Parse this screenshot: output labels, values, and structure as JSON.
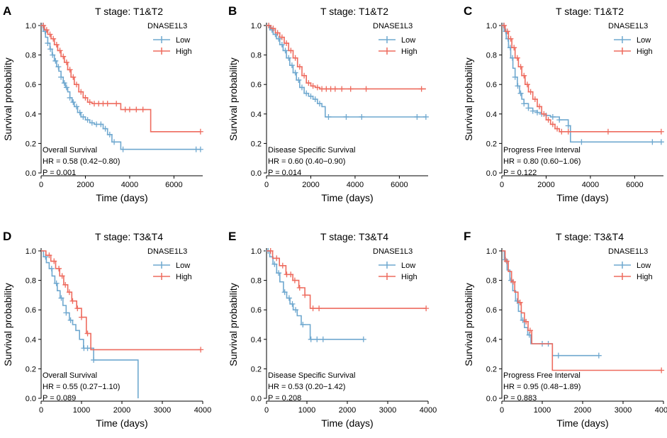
{
  "figure": {
    "colors": {
      "low": "#6fa8cf",
      "high": "#ee6b5e",
      "axis": "#000000"
    },
    "ylabel": "Survival probability",
    "legend_title": "DNASE1L3",
    "legend_labels": [
      "Low",
      "High"
    ]
  },
  "chart_data": [
    {
      "type": "line",
      "panel": "A",
      "title": "T stage: T1&T2",
      "xlabel": "Time (days)",
      "ylabel": "Survival probability",
      "xlim": [
        0,
        7300
      ],
      "ylim": [
        0,
        1
      ],
      "xticks": [
        0,
        2000,
        4000,
        6000
      ],
      "yticks": [
        0.0,
        0.2,
        0.4,
        0.6,
        0.8,
        1.0
      ],
      "ytick_labels": [
        "0.0",
        "0.2",
        "0.4",
        "0.6",
        "0.8",
        "1.0"
      ],
      "legend_title": "DNASE1L3",
      "stats": [
        "Overall Survival",
        "HR = 0.58 (0.42−0.80)",
        "P = 0.001"
      ],
      "series": [
        {
          "name": "Low",
          "x": [
            0,
            100,
            200,
            300,
            400,
            500,
            600,
            700,
            800,
            900,
            1000,
            1100,
            1200,
            1300,
            1400,
            1500,
            1650,
            1800,
            2000,
            2200,
            2400,
            2600,
            2800,
            3000,
            3200,
            3400,
            3600,
            7200
          ],
          "y": [
            1.0,
            0.96,
            0.92,
            0.88,
            0.84,
            0.8,
            0.76,
            0.72,
            0.69,
            0.65,
            0.61,
            0.58,
            0.55,
            0.51,
            0.48,
            0.45,
            0.41,
            0.38,
            0.36,
            0.34,
            0.33,
            0.33,
            0.3,
            0.26,
            0.21,
            0.21,
            0.16,
            0.16
          ],
          "censor_x": [
            80,
            180,
            300,
            420,
            520,
            650,
            780,
            900,
            1050,
            1150,
            1300,
            1450,
            1600,
            1750,
            1900,
            2100,
            2300,
            2500,
            2700,
            2900,
            3100,
            3300,
            3700,
            7000,
            7200
          ]
        },
        {
          "name": "High",
          "x": [
            0,
            150,
            300,
            450,
            600,
            750,
            900,
            1050,
            1200,
            1350,
            1500,
            1700,
            1900,
            2100,
            2300,
            2500,
            3000,
            3600,
            4900,
            4950,
            7200
          ],
          "y": [
            1.0,
            0.97,
            0.94,
            0.91,
            0.87,
            0.83,
            0.79,
            0.75,
            0.7,
            0.65,
            0.6,
            0.55,
            0.51,
            0.48,
            0.47,
            0.47,
            0.47,
            0.43,
            0.43,
            0.28,
            0.28
          ],
          "censor_x": [
            100,
            250,
            400,
            550,
            700,
            850,
            1000,
            1150,
            1300,
            1450,
            1600,
            1800,
            2000,
            2200,
            2400,
            2600,
            2800,
            3000,
            3400,
            3800,
            4000,
            4300,
            4600,
            7200
          ]
        }
      ]
    },
    {
      "type": "line",
      "panel": "B",
      "title": "T stage: T1&T2",
      "xlabel": "Time (days)",
      "ylabel": "Survival probability",
      "xlim": [
        0,
        7300
      ],
      "ylim": [
        0,
        1
      ],
      "xticks": [
        0,
        2000,
        4000,
        6000
      ],
      "yticks": [
        0.0,
        0.2,
        0.4,
        0.6,
        0.8,
        1.0
      ],
      "ytick_labels": [
        "0.0",
        "0.2",
        "0.4",
        "0.6",
        "0.8",
        "1.0"
      ],
      "legend_title": "DNASE1L3",
      "stats": [
        "Disease Specific Survival",
        "HR = 0.60 (0.40−0.90)",
        "P = 0.014"
      ],
      "series": [
        {
          "name": "Low",
          "x": [
            0,
            150,
            300,
            450,
            600,
            750,
            900,
            1050,
            1200,
            1350,
            1500,
            1700,
            1900,
            2100,
            2300,
            2500,
            2650,
            7200
          ],
          "y": [
            1.0,
            0.97,
            0.94,
            0.91,
            0.87,
            0.83,
            0.78,
            0.73,
            0.68,
            0.63,
            0.58,
            0.54,
            0.52,
            0.5,
            0.47,
            0.45,
            0.38,
            0.38
          ],
          "censor_x": [
            100,
            250,
            400,
            550,
            700,
            850,
            1000,
            1150,
            1300,
            1450,
            1600,
            1800,
            2000,
            2200,
            2400,
            2800,
            3600,
            4300,
            6800,
            7200
          ]
        },
        {
          "name": "High",
          "x": [
            0,
            200,
            400,
            600,
            800,
            1000,
            1200,
            1400,
            1600,
            1800,
            2000,
            2200,
            2400,
            7200
          ],
          "y": [
            1.0,
            0.98,
            0.95,
            0.92,
            0.88,
            0.83,
            0.78,
            0.72,
            0.66,
            0.61,
            0.59,
            0.58,
            0.57,
            0.57
          ],
          "censor_x": [
            100,
            300,
            500,
            700,
            900,
            1100,
            1300,
            1500,
            1700,
            1900,
            2100,
            2300,
            2500,
            2700,
            2900,
            3100,
            3400,
            3800,
            4500,
            7000
          ]
        }
      ]
    },
    {
      "type": "line",
      "panel": "C",
      "title": "T stage: T1&T2",
      "xlabel": "Time (days)",
      "ylabel": "Survival probability",
      "xlim": [
        0,
        7300
      ],
      "ylim": [
        0,
        1
      ],
      "xticks": [
        0,
        2000,
        4000,
        6000
      ],
      "yticks": [
        0.0,
        0.2,
        0.4,
        0.6,
        0.8,
        1.0
      ],
      "ytick_labels": [
        "0.0",
        "0.2",
        "0.4",
        "0.6",
        "0.8",
        "1.0"
      ],
      "legend_title": "DNASE1L3",
      "stats": [
        "Progress Free Interval",
        "HR = 0.80 (0.60−1.06)",
        "P = 0.122"
      ],
      "series": [
        {
          "name": "Low",
          "x": [
            0,
            100,
            200,
            300,
            400,
            500,
            600,
            700,
            800,
            900,
            1000,
            1200,
            1400,
            1600,
            1800,
            2000,
            2200,
            2600,
            3000,
            3100,
            7200
          ],
          "y": [
            1.0,
            0.96,
            0.91,
            0.85,
            0.78,
            0.71,
            0.65,
            0.59,
            0.54,
            0.5,
            0.47,
            0.44,
            0.42,
            0.41,
            0.4,
            0.39,
            0.38,
            0.36,
            0.32,
            0.21,
            0.21
          ],
          "censor_x": [
            80,
            180,
            280,
            380,
            480,
            600,
            720,
            850,
            1000,
            1200,
            1400,
            1600,
            1800,
            2000,
            2300,
            2600,
            3000,
            3600,
            6800,
            7200
          ]
        },
        {
          "name": "High",
          "x": [
            0,
            150,
            300,
            450,
            600,
            750,
            900,
            1050,
            1200,
            1400,
            1600,
            1800,
            2000,
            2200,
            2400,
            2600,
            7200
          ],
          "y": [
            1.0,
            0.96,
            0.91,
            0.85,
            0.78,
            0.72,
            0.66,
            0.6,
            0.55,
            0.5,
            0.45,
            0.4,
            0.36,
            0.33,
            0.3,
            0.28,
            0.28
          ],
          "censor_x": [
            100,
            250,
            400,
            550,
            700,
            850,
            1000,
            1150,
            1300,
            1500,
            1700,
            1900,
            2100,
            2300,
            2500,
            2700,
            3000,
            4800,
            7200
          ]
        }
      ]
    },
    {
      "type": "line",
      "panel": "D",
      "title": "T stage: T3&T4",
      "xlabel": "Time (days)",
      "ylabel": "Survival probability",
      "xlim": [
        0,
        4000
      ],
      "ylim": [
        0,
        1
      ],
      "xticks": [
        0,
        1000,
        2000,
        3000,
        4000
      ],
      "yticks": [
        0.0,
        0.2,
        0.4,
        0.6,
        0.8,
        1.0
      ],
      "ytick_labels": [
        "0.0",
        "0.2",
        "0.4",
        "0.6",
        "0.8",
        "1.0"
      ],
      "legend_title": "DNASE1L3",
      "stats": [
        "Overall Survival",
        "HR = 0.55 (0.27−1.10)",
        "P = 0.089"
      ],
      "series": [
        {
          "name": "Low",
          "x": [
            0,
            60,
            130,
            200,
            270,
            340,
            400,
            470,
            540,
            620,
            700,
            780,
            860,
            950,
            1050,
            1300,
            2400,
            2400
          ],
          "y": [
            1.0,
            0.96,
            0.92,
            0.88,
            0.83,
            0.78,
            0.73,
            0.68,
            0.63,
            0.58,
            0.53,
            0.5,
            0.46,
            0.4,
            0.34,
            0.26,
            0.26,
            0.0
          ],
          "censor_x": [
            110,
            260,
            380,
            500,
            620,
            730,
            1060,
            1150,
            1300
          ]
        },
        {
          "name": "High",
          "x": [
            0,
            120,
            240,
            360,
            460,
            560,
            660,
            760,
            880,
            1000,
            1120,
            1230,
            3950
          ],
          "y": [
            1.0,
            0.97,
            0.93,
            0.88,
            0.83,
            0.77,
            0.72,
            0.66,
            0.61,
            0.55,
            0.44,
            0.33,
            0.33
          ],
          "censor_x": [
            200,
            320,
            440,
            520,
            600,
            700,
            780,
            900,
            1000,
            1150,
            3950
          ]
        }
      ]
    },
    {
      "type": "line",
      "panel": "E",
      "title": "T stage: T3&T4",
      "xlabel": "Time (days)",
      "ylabel": "Survival probability",
      "xlim": [
        0,
        4000
      ],
      "ylim": [
        0,
        1
      ],
      "xticks": [
        0,
        1000,
        2000,
        3000,
        4000
      ],
      "yticks": [
        0.0,
        0.2,
        0.4,
        0.6,
        0.8,
        1.0
      ],
      "ytick_labels": [
        "0.0",
        "0.2",
        "0.4",
        "0.6",
        "0.8",
        "1.0"
      ],
      "legend_title": "DNASE1L3",
      "stats": [
        "Disease Specific Survival",
        "HR = 0.53 (0.20−1.42)",
        "P = 0.208"
      ],
      "series": [
        {
          "name": "Low",
          "x": [
            0,
            80,
            160,
            250,
            330,
            420,
            500,
            580,
            660,
            760,
            860,
            960,
            1080,
            2400
          ],
          "y": [
            1.0,
            0.96,
            0.91,
            0.85,
            0.79,
            0.72,
            0.68,
            0.64,
            0.6,
            0.56,
            0.5,
            0.5,
            0.4,
            0.4
          ],
          "censor_x": [
            40,
            200,
            300,
            450,
            560,
            640,
            720,
            900,
            1100,
            1250,
            1400,
            2400
          ]
        },
        {
          "name": "High",
          "x": [
            0,
            150,
            320,
            480,
            650,
            800,
            950,
            1080,
            3950
          ],
          "y": [
            1.0,
            0.95,
            0.9,
            0.84,
            0.8,
            0.75,
            0.7,
            0.61,
            0.61
          ],
          "censor_x": [
            100,
            250,
            400,
            500,
            600,
            700,
            820,
            950,
            1150,
            1300,
            3950
          ]
        }
      ]
    },
    {
      "type": "line",
      "panel": "F",
      "title": "T stage: T3&T4",
      "xlabel": "Time (days)",
      "ylabel": "Survival probability",
      "xlim": [
        0,
        4000
      ],
      "ylim": [
        0,
        1
      ],
      "xticks": [
        0,
        1000,
        2000,
        3000,
        4000
      ],
      "yticks": [
        0.0,
        0.2,
        0.4,
        0.6,
        0.8,
        1.0
      ],
      "ytick_labels": [
        "0.0",
        "0.2",
        "0.4",
        "0.6",
        "0.8",
        "1.0"
      ],
      "legend_title": "DNASE1L3",
      "stats": [
        "Progress Free Interval",
        "HR = 0.95 (0.48−1.89)",
        "P = 0.883"
      ],
      "series": [
        {
          "name": "Low",
          "x": [
            0,
            60,
            130,
            200,
            270,
            340,
            410,
            480,
            560,
            640,
            720,
            1150,
            1250,
            2400
          ],
          "y": [
            1.0,
            0.94,
            0.87,
            0.8,
            0.73,
            0.66,
            0.59,
            0.53,
            0.48,
            0.43,
            0.37,
            0.37,
            0.29,
            0.29
          ],
          "censor_x": [
            90,
            230,
            380,
            520,
            680,
            1000,
            1150,
            1400,
            2400
          ]
        },
        {
          "name": "High",
          "x": [
            0,
            80,
            160,
            240,
            320,
            400,
            480,
            560,
            650,
            740,
            1250,
            1250,
            3950
          ],
          "y": [
            1.0,
            0.93,
            0.86,
            0.79,
            0.72,
            0.65,
            0.58,
            0.52,
            0.46,
            0.37,
            0.37,
            0.19,
            0.19
          ],
          "censor_x": [
            120,
            280,
            450,
            600,
            700,
            3950
          ]
        }
      ]
    }
  ]
}
